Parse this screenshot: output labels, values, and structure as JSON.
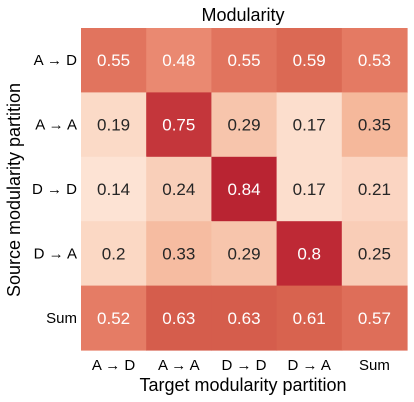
{
  "chart_data": {
    "type": "heatmap",
    "title": "Modularity",
    "xlabel": "Target modularity partition",
    "ylabel": "Source modularity partition",
    "x_categories": [
      "A → D",
      "A → A",
      "D → D",
      "D → A",
      "Sum"
    ],
    "y_categories": [
      "A → D",
      "A → A",
      "D → D",
      "D → A",
      "Sum"
    ],
    "values": [
      [
        0.55,
        0.48,
        0.55,
        0.59,
        0.53
      ],
      [
        0.19,
        0.75,
        0.29,
        0.17,
        0.35
      ],
      [
        0.14,
        0.24,
        0.84,
        0.17,
        0.21
      ],
      [
        0.2,
        0.33,
        0.29,
        0.8,
        0.25
      ],
      [
        0.52,
        0.63,
        0.63,
        0.61,
        0.57
      ]
    ],
    "value_labels": [
      [
        "0.55",
        "0.48",
        "0.55",
        "0.59",
        "0.53"
      ],
      [
        "0.19",
        "0.75",
        "0.29",
        "0.17",
        "0.35"
      ],
      [
        "0.14",
        "0.24",
        "0.84",
        "0.17",
        "0.21"
      ],
      [
        "0.2",
        "0.33",
        "0.29",
        "0.8",
        "0.25"
      ],
      [
        "0.52",
        "0.63",
        "0.63",
        "0.61",
        "0.57"
      ]
    ],
    "colormap": "coolwarm (red half)",
    "color_range": [
      0,
      1
    ],
    "colors": {
      "low": "#f7f7f7",
      "mid": "#f4a582",
      "high": "#a50f23"
    }
  }
}
